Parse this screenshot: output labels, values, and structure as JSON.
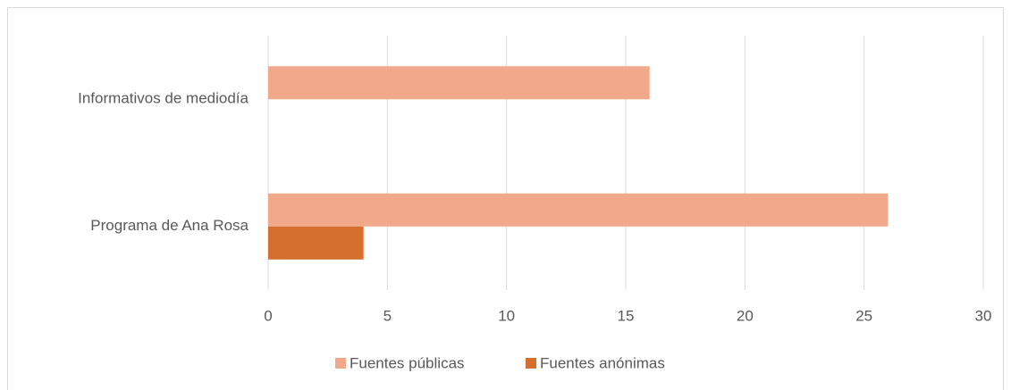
{
  "chart_data": {
    "type": "bar",
    "orientation": "horizontal",
    "categories": [
      "Informativos de mediodía",
      "Programa de Ana Rosa"
    ],
    "series": [
      {
        "name": "Fuentes públicas",
        "color": "#f2a98b",
        "values": [
          16,
          26
        ]
      },
      {
        "name": "Fuentes anónimas",
        "color": "#d46f2d",
        "values": [
          0,
          4
        ]
      }
    ],
    "xlim": [
      0,
      30
    ],
    "xticks": [
      0,
      5,
      10,
      15,
      20,
      25,
      30
    ],
    "grid": true,
    "legend": "bottom"
  }
}
